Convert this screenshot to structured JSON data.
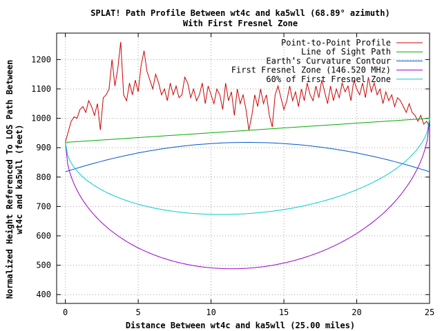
{
  "chart_data": {
    "type": "line",
    "title": "SPLAT! Path Profile Between wt4c and ka5wll (68.89° azimuth)",
    "subtitle": "With First Fresnel Zone",
    "xlabel": "Distance Between wt4c and ka5wll (25.00 miles)",
    "ylabel_line1": "Normalized Height Referenced To LOS Path Between",
    "ylabel_line2": "wt4c and ka5wll (feet)",
    "xlim": [
      -0.6,
      25
    ],
    "ylim": [
      370,
      1290
    ],
    "xticks": [
      0,
      5,
      10,
      15,
      20,
      25
    ],
    "xtick_labels": [
      "0",
      "5",
      "10",
      "15",
      "20",
      "25"
    ],
    "yticks": [
      400,
      500,
      600,
      700,
      800,
      900,
      1000,
      1100,
      1200
    ],
    "ytick_labels": [
      "400",
      "500",
      "600",
      "700",
      "800",
      "900",
      "1000",
      "1100",
      "1200"
    ],
    "grid": true,
    "legend_position": "top-right",
    "series": [
      {
        "name": "Point-to-Point Profile",
        "color": "#cc0000",
        "x": [
          0.0,
          0.2,
          0.4,
          0.6,
          0.8,
          1.0,
          1.2,
          1.4,
          1.6,
          1.8,
          2.0,
          2.2,
          2.4,
          2.6,
          2.8,
          3.0,
          3.2,
          3.4,
          3.6,
          3.8,
          4.0,
          4.2,
          4.4,
          4.6,
          4.8,
          5.0,
          5.2,
          5.4,
          5.6,
          5.8,
          6.0,
          6.2,
          6.4,
          6.6,
          6.8,
          7.0,
          7.2,
          7.4,
          7.6,
          7.8,
          8.0,
          8.2,
          8.4,
          8.6,
          8.8,
          9.0,
          9.2,
          9.4,
          9.6,
          9.8,
          10.0,
          10.2,
          10.4,
          10.6,
          10.8,
          11.0,
          11.2,
          11.4,
          11.6,
          11.8,
          12.0,
          12.2,
          12.4,
          12.6,
          12.8,
          13.0,
          13.2,
          13.4,
          13.6,
          13.8,
          14.0,
          14.2,
          14.4,
          14.6,
          14.8,
          15.0,
          15.2,
          15.4,
          15.6,
          15.8,
          16.0,
          16.2,
          16.4,
          16.6,
          16.8,
          17.0,
          17.2,
          17.4,
          17.6,
          17.8,
          18.0,
          18.2,
          18.4,
          18.6,
          18.8,
          19.0,
          19.2,
          19.4,
          19.6,
          19.8,
          20.0,
          20.2,
          20.4,
          20.6,
          20.8,
          21.0,
          21.2,
          21.4,
          21.6,
          21.8,
          22.0,
          22.2,
          22.4,
          22.6,
          22.8,
          23.0,
          23.2,
          23.4,
          23.6,
          23.8,
          24.0,
          24.2,
          24.4,
          24.6,
          24.8,
          25.0
        ],
        "y": [
          920,
          955,
          990,
          1005,
          1000,
          1030,
          1040,
          1020,
          1060,
          1040,
          1010,
          1050,
          960,
          1070,
          1080,
          1100,
          1200,
          1110,
          1170,
          1260,
          1080,
          1060,
          1120,
          1080,
          1130,
          1090,
          1180,
          1230,
          1160,
          1130,
          1100,
          1150,
          1120,
          1080,
          1100,
          1060,
          1120,
          1080,
          1110,
          1070,
          1080,
          1140,
          1120,
          1070,
          1100,
          1060,
          1080,
          1120,
          1050,
          1110,
          1080,
          1050,
          1100,
          1080,
          1030,
          1120,
          1060,
          1090,
          1010,
          1100,
          1050,
          1080,
          1030,
          960,
          1010,
          1080,
          1040,
          1100,
          1050,
          1080,
          1010,
          970,
          1080,
          1110,
          1070,
          1030,
          1060,
          1110,
          1060,
          1090,
          1040,
          1100,
          1060,
          1120,
          1080,
          1060,
          1110,
          1070,
          1130,
          1090,
          1050,
          1110,
          1060,
          1100,
          1070,
          1120,
          1090,
          1110,
          1060,
          1130,
          1100,
          1080,
          1120,
          1070,
          1140,
          1090,
          1120,
          1080,
          1100,
          1050,
          1090,
          1060,
          1080,
          1040,
          1070,
          1060,
          1040,
          1020,
          1050,
          1020,
          1010,
          990,
          1010,
          980,
          990,
          970
        ]
      },
      {
        "name": "Line of Sight Path",
        "color": "#00aa00",
        "x": [
          0,
          25
        ],
        "y": [
          918,
          1000
        ]
      },
      {
        "name": "Earth’s Curvature Contour",
        "color": "#0055cc",
        "shape": "parabola",
        "x": [
          0,
          12.5,
          25
        ],
        "y": [
          818,
          918,
          818
        ]
      },
      {
        "name": "First Fresnel Zone (146.520 MHz)",
        "color": "#9900cc",
        "shape": "fresnel",
        "x": [
          0,
          11.3,
          25
        ],
        "y": [
          918,
          488,
          1000
        ]
      },
      {
        "name": "60% of First Fresnel Zone",
        "color": "#00cccc",
        "shape": "fresnel",
        "x": [
          0,
          11.3,
          25
        ],
        "y": [
          918,
          673,
          1000
        ]
      }
    ]
  }
}
